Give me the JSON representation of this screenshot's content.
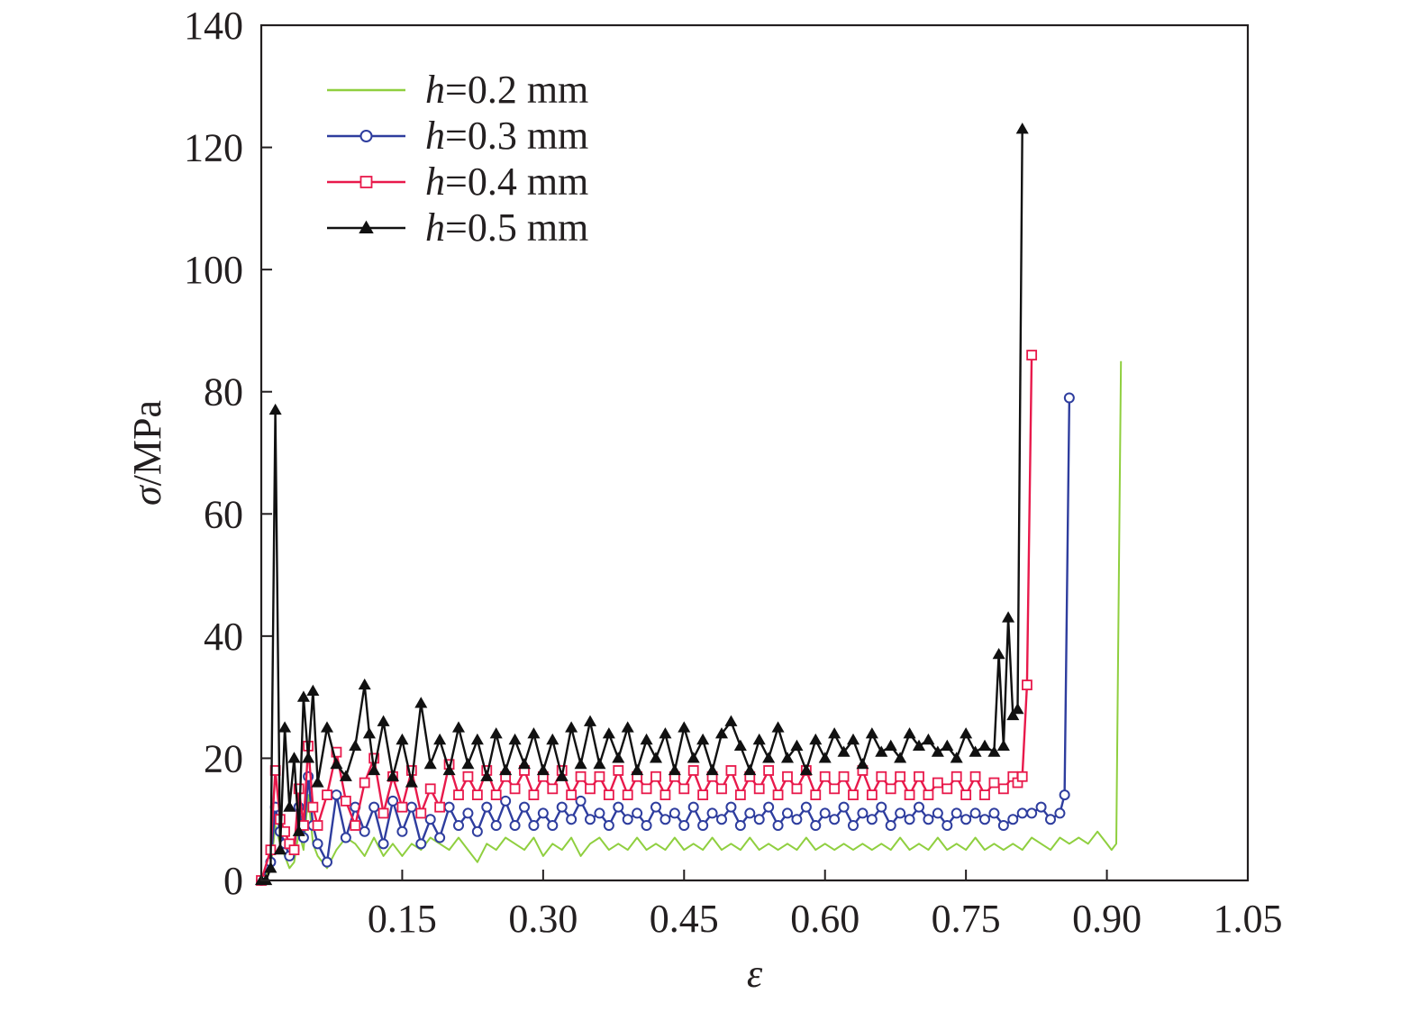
{
  "chart_data": {
    "type": "line",
    "title": "",
    "xlabel": "ε",
    "ylabel_symbol": "σ",
    "ylabel_unit": "/MPa",
    "xlim": [
      0,
      1.05
    ],
    "ylim": [
      0,
      140
    ],
    "x_ticks": [
      "0.15",
      "0.30",
      "0.45",
      "0.60",
      "0.75",
      "0.90",
      "1.05"
    ],
    "x_tick_values": [
      0.15,
      0.3,
      0.45,
      0.6,
      0.75,
      0.9,
      1.05
    ],
    "y_ticks": [
      "0",
      "20",
      "40",
      "60",
      "80",
      "100",
      "120",
      "140"
    ],
    "y_tick_values": [
      0,
      20,
      40,
      60,
      80,
      100,
      120,
      140
    ],
    "grid": false,
    "legend_position": "top-left",
    "series": [
      {
        "name": "h=0.2 mm",
        "legend_symbol": "h",
        "legend_text": "=0.2 mm",
        "color": "#8fcf3f",
        "marker": "none",
        "x": [
          0,
          0.01,
          0.015,
          0.02,
          0.025,
          0.03,
          0.035,
          0.04,
          0.045,
          0.05,
          0.055,
          0.06,
          0.07,
          0.08,
          0.09,
          0.1,
          0.11,
          0.12,
          0.13,
          0.14,
          0.15,
          0.16,
          0.17,
          0.18,
          0.19,
          0.2,
          0.21,
          0.22,
          0.23,
          0.24,
          0.25,
          0.26,
          0.27,
          0.28,
          0.29,
          0.3,
          0.31,
          0.32,
          0.33,
          0.34,
          0.35,
          0.36,
          0.37,
          0.38,
          0.39,
          0.4,
          0.41,
          0.42,
          0.43,
          0.44,
          0.45,
          0.46,
          0.47,
          0.48,
          0.49,
          0.5,
          0.51,
          0.52,
          0.53,
          0.54,
          0.55,
          0.56,
          0.57,
          0.58,
          0.59,
          0.6,
          0.61,
          0.62,
          0.63,
          0.64,
          0.65,
          0.66,
          0.67,
          0.68,
          0.69,
          0.7,
          0.71,
          0.72,
          0.73,
          0.74,
          0.75,
          0.76,
          0.77,
          0.78,
          0.79,
          0.8,
          0.81,
          0.82,
          0.83,
          0.84,
          0.85,
          0.86,
          0.87,
          0.88,
          0.89,
          0.9,
          0.905,
          0.91,
          0.915
        ],
        "y": [
          0,
          2,
          9,
          6,
          4,
          2,
          3,
          8,
          5,
          14,
          6,
          4,
          2,
          5,
          7,
          6,
          4,
          7,
          4,
          6,
          4,
          6,
          5,
          7,
          6,
          5,
          7,
          5,
          3,
          6,
          5,
          7,
          6,
          5,
          7,
          4,
          6,
          5,
          7,
          4,
          6,
          7,
          5,
          6,
          5,
          7,
          5,
          6,
          5,
          7,
          5,
          6,
          5,
          7,
          5,
          6,
          5,
          7,
          5,
          6,
          5,
          6,
          5,
          7,
          5,
          6,
          5,
          6,
          5,
          6,
          5,
          6,
          5,
          7,
          5,
          6,
          5,
          7,
          5,
          6,
          5,
          7,
          5,
          6,
          5,
          6,
          5,
          7,
          6,
          5,
          7,
          6,
          7,
          6,
          8,
          6,
          5,
          6,
          85
        ]
      },
      {
        "name": "h=0.3 mm",
        "legend_symbol": "h",
        "legend_text": "=0.3 mm",
        "color": "#2e3d9e",
        "marker": "circle",
        "x": [
          0,
          0.01,
          0.015,
          0.02,
          0.025,
          0.03,
          0.035,
          0.04,
          0.045,
          0.05,
          0.055,
          0.06,
          0.07,
          0.08,
          0.09,
          0.1,
          0.11,
          0.12,
          0.13,
          0.14,
          0.15,
          0.16,
          0.17,
          0.18,
          0.19,
          0.2,
          0.21,
          0.22,
          0.23,
          0.24,
          0.25,
          0.26,
          0.27,
          0.28,
          0.29,
          0.3,
          0.31,
          0.32,
          0.33,
          0.34,
          0.35,
          0.36,
          0.37,
          0.38,
          0.39,
          0.4,
          0.41,
          0.42,
          0.43,
          0.44,
          0.45,
          0.46,
          0.47,
          0.48,
          0.49,
          0.5,
          0.51,
          0.52,
          0.53,
          0.54,
          0.55,
          0.56,
          0.57,
          0.58,
          0.59,
          0.6,
          0.61,
          0.62,
          0.63,
          0.64,
          0.65,
          0.66,
          0.67,
          0.68,
          0.69,
          0.7,
          0.71,
          0.72,
          0.73,
          0.74,
          0.75,
          0.76,
          0.77,
          0.78,
          0.79,
          0.8,
          0.81,
          0.82,
          0.83,
          0.84,
          0.85,
          0.855,
          0.86
        ],
        "y": [
          0,
          3,
          12,
          8,
          6,
          4,
          5,
          12,
          7,
          17,
          9,
          6,
          3,
          14,
          7,
          12,
          8,
          12,
          6,
          13,
          8,
          12,
          6,
          10,
          7,
          12,
          9,
          11,
          8,
          12,
          9,
          13,
          9,
          12,
          9,
          11,
          9,
          12,
          10,
          13,
          10,
          11,
          9,
          12,
          10,
          11,
          9,
          12,
          10,
          11,
          9,
          12,
          9,
          11,
          10,
          12,
          9,
          11,
          10,
          12,
          9,
          11,
          10,
          12,
          9,
          11,
          10,
          12,
          9,
          11,
          10,
          12,
          9,
          11,
          10,
          12,
          10,
          11,
          9,
          11,
          10,
          11,
          10,
          11,
          9,
          10,
          11,
          11,
          12,
          10,
          11,
          14,
          79
        ]
      },
      {
        "name": "h=0.4 mm",
        "legend_symbol": "h",
        "legend_text": "=0.4 mm",
        "color": "#e8194b",
        "marker": "square",
        "x": [
          0,
          0.01,
          0.015,
          0.02,
          0.025,
          0.03,
          0.035,
          0.04,
          0.045,
          0.05,
          0.055,
          0.06,
          0.07,
          0.08,
          0.09,
          0.1,
          0.11,
          0.12,
          0.13,
          0.14,
          0.15,
          0.16,
          0.17,
          0.18,
          0.19,
          0.2,
          0.21,
          0.22,
          0.23,
          0.24,
          0.25,
          0.26,
          0.27,
          0.28,
          0.29,
          0.3,
          0.31,
          0.32,
          0.33,
          0.34,
          0.35,
          0.36,
          0.37,
          0.38,
          0.39,
          0.4,
          0.41,
          0.42,
          0.43,
          0.44,
          0.45,
          0.46,
          0.47,
          0.48,
          0.49,
          0.5,
          0.51,
          0.52,
          0.53,
          0.54,
          0.55,
          0.56,
          0.57,
          0.58,
          0.59,
          0.6,
          0.61,
          0.62,
          0.63,
          0.64,
          0.65,
          0.66,
          0.67,
          0.68,
          0.69,
          0.7,
          0.71,
          0.72,
          0.73,
          0.74,
          0.75,
          0.76,
          0.77,
          0.78,
          0.79,
          0.8,
          0.805,
          0.81,
          0.815,
          0.82
        ],
        "y": [
          0,
          5,
          18,
          10,
          8,
          6,
          5,
          15,
          9,
          22,
          12,
          9,
          14,
          21,
          13,
          9,
          16,
          20,
          11,
          17,
          12,
          18,
          11,
          15,
          12,
          19,
          14,
          17,
          14,
          18,
          14,
          17,
          15,
          18,
          14,
          17,
          15,
          18,
          14,
          17,
          15,
          17,
          14,
          18,
          14,
          17,
          15,
          17,
          14,
          17,
          15,
          18,
          14,
          17,
          15,
          18,
          14,
          17,
          15,
          18,
          14,
          17,
          15,
          18,
          14,
          17,
          15,
          17,
          14,
          18,
          14,
          17,
          15,
          17,
          14,
          17,
          14,
          16,
          15,
          17,
          14,
          17,
          14,
          16,
          15,
          17,
          16,
          17,
          32,
          86
        ]
      },
      {
        "name": "h=0.5 mm",
        "legend_symbol": "h",
        "legend_text": "=0.5 mm",
        "color": "#111111",
        "marker": "triangle",
        "x": [
          0,
          0.005,
          0.01,
          0.015,
          0.02,
          0.025,
          0.03,
          0.035,
          0.04,
          0.045,
          0.05,
          0.055,
          0.06,
          0.07,
          0.08,
          0.09,
          0.1,
          0.11,
          0.115,
          0.12,
          0.13,
          0.14,
          0.15,
          0.16,
          0.17,
          0.18,
          0.19,
          0.2,
          0.21,
          0.22,
          0.23,
          0.24,
          0.25,
          0.26,
          0.27,
          0.28,
          0.29,
          0.3,
          0.31,
          0.32,
          0.33,
          0.34,
          0.35,
          0.36,
          0.37,
          0.38,
          0.39,
          0.4,
          0.41,
          0.42,
          0.43,
          0.44,
          0.45,
          0.46,
          0.47,
          0.48,
          0.49,
          0.5,
          0.51,
          0.52,
          0.53,
          0.54,
          0.55,
          0.56,
          0.57,
          0.58,
          0.59,
          0.6,
          0.61,
          0.62,
          0.63,
          0.64,
          0.65,
          0.66,
          0.67,
          0.68,
          0.69,
          0.7,
          0.71,
          0.72,
          0.73,
          0.74,
          0.75,
          0.76,
          0.77,
          0.78,
          0.785,
          0.79,
          0.795,
          0.8,
          0.805,
          0.81
        ],
        "y": [
          0,
          0,
          2,
          77,
          5,
          25,
          12,
          20,
          8,
          30,
          20,
          31,
          16,
          25,
          19,
          17,
          22,
          32,
          24,
          18,
          26,
          17,
          23,
          16,
          29,
          19,
          23,
          18,
          25,
          19,
          23,
          17,
          24,
          18,
          23,
          19,
          24,
          18,
          23,
          17,
          25,
          19,
          26,
          19,
          24,
          20,
          25,
          18,
          23,
          20,
          24,
          18,
          25,
          20,
          23,
          18,
          24,
          26,
          22,
          18,
          23,
          20,
          25,
          20,
          22,
          18,
          23,
          20,
          24,
          21,
          23,
          19,
          24,
          21,
          22,
          20,
          24,
          22,
          23,
          21,
          22,
          20,
          24,
          21,
          22,
          21,
          37,
          22,
          43,
          27,
          28,
          123
        ]
      }
    ]
  }
}
